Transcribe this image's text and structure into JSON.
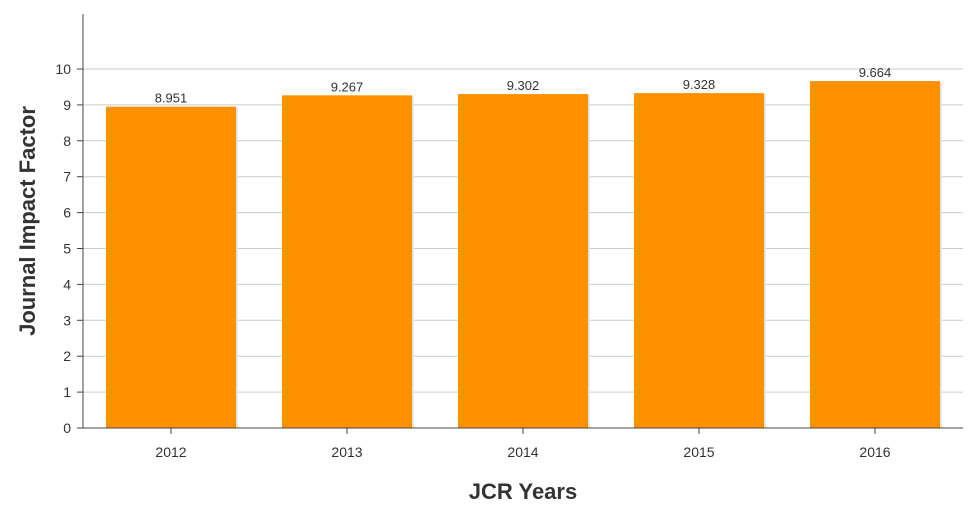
{
  "chart_data": {
    "type": "bar",
    "categories": [
      "2012",
      "2013",
      "2014",
      "2015",
      "2016"
    ],
    "values": [
      8.951,
      9.267,
      9.302,
      9.328,
      9.664
    ],
    "value_labels": [
      "8.951",
      "9.267",
      "9.302",
      "9.328",
      "9.664"
    ],
    "xlabel": "JCR Years",
    "ylabel": "Journal Impact Factor",
    "ylim": [
      0,
      10
    ],
    "yticks": [
      0,
      1,
      2,
      3,
      4,
      5,
      6,
      7,
      8,
      9,
      10
    ],
    "grid": true,
    "bar_color": "#ff9100"
  }
}
